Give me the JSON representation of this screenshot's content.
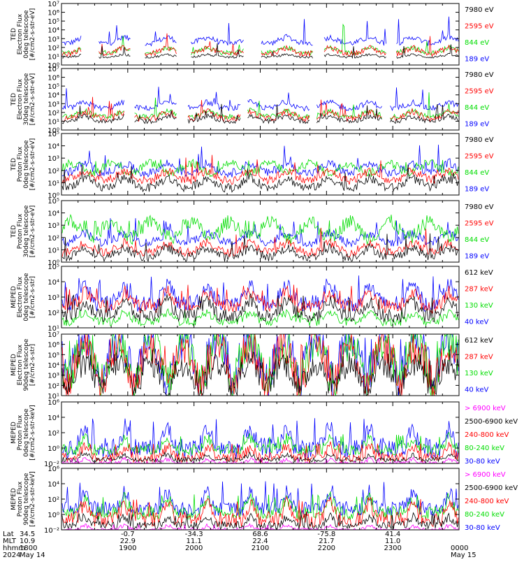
{
  "chart_data": {
    "type": "line",
    "x_axis": {
      "row_labels": [
        "Lat",
        "MLT",
        "hhmm",
        "2024"
      ],
      "columns": [
        {
          "lat": "34.5",
          "mlt": "10.9",
          "hhmm": "1800",
          "date": "May 14"
        },
        {
          "lat": "-0.7",
          "mlt": "22.9",
          "hhmm": "1900",
          "date": ""
        },
        {
          "lat": "-34.3",
          "mlt": "11.1",
          "hhmm": "2000",
          "date": ""
        },
        {
          "lat": "68.6",
          "mlt": "22.4",
          "hhmm": "2100",
          "date": ""
        },
        {
          "lat": "-75.8",
          "mlt": "21.7",
          "hhmm": "2200",
          "date": ""
        },
        {
          "lat": "41.4",
          "mlt": "11.0",
          "hhmm": "2300",
          "date": ""
        },
        {
          "lat": "",
          "mlt": "",
          "hhmm": "0000",
          "date": "May 15"
        }
      ],
      "xlim_hours": [
        18,
        24
      ]
    },
    "panels": [
      {
        "ylabel": [
          "TED",
          "Electron Flux",
          "0deg telescope",
          "[#/cm2-s-str-eV]"
        ],
        "ylim_log10": [
          0,
          7
        ],
        "yticks": [
          "10⁰",
          "10¹",
          "10²",
          "10³",
          "10⁴",
          "10⁵",
          "10⁶",
          "10⁷"
        ],
        "legend": [
          {
            "label": "7980 eV",
            "color": "#000000"
          },
          {
            "label": "2595 eV",
            "color": "#ff0000"
          },
          {
            "label": "844 eV",
            "color": "#00dd00"
          },
          {
            "label": "189 eV",
            "color": "#0000ff"
          }
        ],
        "series_levels": {
          "blue": [
            2.5,
            3.2
          ],
          "green": [
            1.4,
            2.0
          ],
          "red": [
            1.3,
            2.0
          ],
          "black": [
            0.9,
            1.2
          ]
        },
        "series_profile": "passes",
        "series_max": {
          "blue": 5.6,
          "green": 4.8,
          "red": 4.2,
          "black": 2.5
        },
        "gaps": [
          [
            18.3,
            18.55
          ],
          [
            19.05,
            19.25
          ],
          [
            19.75,
            19.95
          ],
          [
            20.75,
            21.0
          ],
          [
            21.8,
            21.95
          ],
          [
            22.9,
            23.05
          ]
        ]
      },
      {
        "ylabel": [
          "TED",
          "Electron Flux",
          "30deg telescope",
          "[#/cm2-s-str-eV]"
        ],
        "ylim_log10": [
          0,
          7
        ],
        "yticks": [
          "10⁰",
          "10¹",
          "10²",
          "10³",
          "10⁴",
          "10⁵",
          "10⁶",
          "10⁷"
        ],
        "legend": [
          {
            "label": "7980 eV",
            "color": "#000000"
          },
          {
            "label": "2595 eV",
            "color": "#ff0000"
          },
          {
            "label": "844 eV",
            "color": "#00dd00"
          },
          {
            "label": "189 eV",
            "color": "#0000ff"
          }
        ],
        "series_levels": {
          "blue": [
            2.5,
            3.2
          ],
          "green": [
            1.5,
            2.2
          ],
          "red": [
            1.3,
            2.1
          ],
          "black": [
            1.0,
            1.6
          ]
        },
        "series_profile": "passes",
        "series_max": {
          "blue": 5.0,
          "green": 4.4,
          "red": 4.0,
          "black": 3.0
        },
        "gaps": [
          [
            18.95,
            19.1
          ],
          [
            19.75,
            19.9
          ],
          [
            20.7,
            20.8
          ],
          [
            21.75,
            21.85
          ],
          [
            22.85,
            22.95
          ]
        ]
      },
      {
        "ylabel": [
          "TED",
          "Proton Flux",
          "0deg telescope",
          "[#/cm2-s-str-eV]"
        ],
        "ylim_log10": [
          0,
          5
        ],
        "yticks": [
          "10⁰",
          "10¹",
          "10²",
          "10³",
          "10⁴",
          "10⁵"
        ],
        "legend": [
          {
            "label": "7980 eV",
            "color": "#000000"
          },
          {
            "label": "2595 eV",
            "color": "#ff0000"
          },
          {
            "label": "844 eV",
            "color": "#00dd00"
          },
          {
            "label": "189 eV",
            "color": "#0000ff"
          }
        ],
        "series_levels": {
          "blue": [
            1.8,
            2.6
          ],
          "green": [
            1.8,
            2.6
          ],
          "red": [
            1.2,
            2.0
          ],
          "black": [
            0.6,
            1.4
          ]
        },
        "series_profile": "waves",
        "series_max": {
          "blue": 4.2,
          "green": 2.9,
          "red": 3.3,
          "black": 2.8
        },
        "gaps": []
      },
      {
        "ylabel": [
          "TED",
          "Proton Flux",
          "30deg telescope",
          "[#/cm2-s-str-eV]"
        ],
        "ylim_log10": [
          0,
          5
        ],
        "yticks": [
          "10⁰",
          "10¹",
          "10²",
          "10³",
          "10⁴",
          "10⁵"
        ],
        "legend": [
          {
            "label": "7980 eV",
            "color": "#000000"
          },
          {
            "label": "2595 eV",
            "color": "#ff0000"
          },
          {
            "label": "844 eV",
            "color": "#00dd00"
          },
          {
            "label": "189 eV",
            "color": "#0000ff"
          }
        ],
        "series_levels": {
          "blue": [
            1.6,
            2.4
          ],
          "green": [
            2.0,
            3.3
          ],
          "red": [
            0.8,
            1.6
          ],
          "black": [
            0.4,
            1.2
          ]
        },
        "series_profile": "waves",
        "series_max": {
          "blue": 3.6,
          "green": 3.4,
          "red": 2.8,
          "black": 2.4
        },
        "gaps": []
      },
      {
        "ylabel": [
          "MEPED",
          "Electron Flux",
          "0deg telescope",
          "[#/cm2-s-str]"
        ],
        "ylim_log10": [
          1,
          5
        ],
        "yticks": [
          "10¹",
          "10²",
          "10³",
          "10⁴",
          "10⁵"
        ],
        "legend": [
          {
            "label": "612 keV",
            "color": "#000000"
          },
          {
            "label": "287 keV",
            "color": "#ff0000"
          },
          {
            "label": "130 keV",
            "color": "#00dd00"
          },
          {
            "label": "40 keV",
            "color": "#0000ff"
          }
        ],
        "series_levels": {
          "blue": [
            2.6,
            3.8
          ],
          "green": [
            1.4,
            2.0
          ],
          "red": [
            2.4,
            3.4
          ],
          "black": [
            1.8,
            2.8
          ]
        },
        "series_profile": "belts",
        "series_max": {
          "blue": 4.4,
          "green": 2.2,
          "red": 3.8,
          "black": 3.2
        },
        "gaps": []
      },
      {
        "ylabel": [
          "MEPED",
          "Electron Flux",
          "90deg telescope",
          "[#/cm2-s-str]"
        ],
        "ylim_log10": [
          1,
          7
        ],
        "yticks": [
          "10¹",
          "10²",
          "10³",
          "10⁴",
          "10⁵",
          "10⁶",
          "10⁷"
        ],
        "legend": [
          {
            "label": "612 keV",
            "color": "#000000"
          },
          {
            "label": "287 keV",
            "color": "#ff0000"
          },
          {
            "label": "130 keV",
            "color": "#00dd00"
          },
          {
            "label": "40 keV",
            "color": "#0000ff"
          }
        ],
        "series_levels": {
          "blue": [
            2.0,
            6.5
          ],
          "green": [
            1.8,
            6.2
          ],
          "red": [
            1.6,
            5.8
          ],
          "black": [
            1.2,
            4.2
          ]
        },
        "series_profile": "domes",
        "series_max": {
          "blue": 6.7,
          "green": 6.4,
          "red": 6.0,
          "black": 4.6
        },
        "gaps": []
      },
      {
        "ylabel": [
          "MEPED",
          "Proton Flux",
          "0deg telescope",
          "[#/cm2-s-str-keV]"
        ],
        "ylim_log10": [
          -2,
          6
        ],
        "yticks": [
          "10⁻²",
          "10⁰",
          "10²",
          "10⁴",
          "10⁶"
        ],
        "legend": [
          {
            "label": "> 6900 keV",
            "color": "#ff00ff"
          },
          {
            "label": "2500-6900 keV",
            "color": "#000000"
          },
          {
            "label": "240-800 keV",
            "color": "#ff0000"
          },
          {
            "label": "80-240 keV",
            "color": "#00dd00"
          },
          {
            "label": "30-80 keV",
            "color": "#0000ff"
          }
        ],
        "series_levels": {
          "blue": [
            0.0,
            3.0
          ],
          "green": [
            -0.2,
            1.4
          ],
          "red": [
            -1.2,
            0.3
          ],
          "black": [
            -1.5,
            -0.8
          ],
          "magenta": [
            -2.0,
            -1.4
          ]
        },
        "series_profile": "spikes",
        "series_max": {
          "blue": 4.2,
          "green": 1.8,
          "red": 0.6,
          "black": -0.5,
          "magenta": -1.3
        },
        "gaps": []
      },
      {
        "ylabel": [
          "MEPED",
          "Proton Flux",
          "90deg telescope",
          "[#/cm2-s-str-keV]"
        ],
        "ylim_log10": [
          -2,
          6
        ],
        "yticks": [
          "10⁻²",
          "10⁰",
          "10²",
          "10⁴",
          "10⁶"
        ],
        "legend": [
          {
            "label": "> 6900 keV",
            "color": "#ff00ff"
          },
          {
            "label": "2500-6900 keV",
            "color": "#000000"
          },
          {
            "label": "240-800 keV",
            "color": "#ff0000"
          },
          {
            "label": "80-240 keV",
            "color": "#00dd00"
          },
          {
            "label": "30-80 keV",
            "color": "#0000ff"
          }
        ],
        "series_levels": {
          "blue": [
            0.8,
            3.0
          ],
          "green": [
            0.2,
            2.2
          ],
          "red": [
            -0.6,
            1.6
          ],
          "black": [
            -1.4,
            -0.2
          ],
          "magenta": [
            -2.0,
            -1.4
          ]
        },
        "series_profile": "spikes",
        "series_max": {
          "blue": 4.4,
          "green": 2.6,
          "red": 2.0,
          "black": 0.2,
          "magenta": -1.3
        },
        "gaps": []
      }
    ]
  }
}
